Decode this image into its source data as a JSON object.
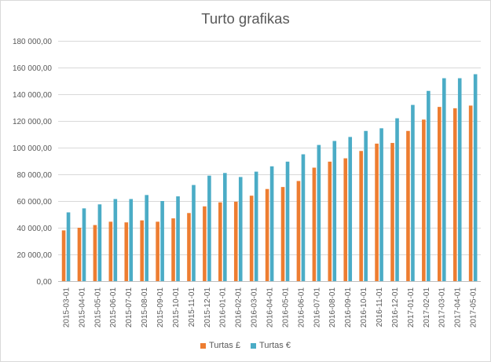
{
  "chart_data": {
    "type": "bar",
    "title": "Turto grafikas",
    "categories": [
      "2015-03-01",
      "2015-04-01",
      "2015-05-01",
      "2015-06-01",
      "2015-07-01",
      "2015-08-01",
      "2015-09-01",
      "2015-10-01",
      "2015-11-01",
      "2015-12-01",
      "2016-01-01",
      "2016-02-01",
      "2016-03-01",
      "2016-04-01",
      "2016-05-01",
      "2016-06-01",
      "2016-07-01",
      "2016-08-01",
      "2016-09-01",
      "2016-10-01",
      "2016-11-01",
      "2016-12-01",
      "2017-01-01",
      "2017-02-01",
      "2017-03-01",
      "2017-04-01",
      "2017-05-01"
    ],
    "series": [
      {
        "name": "Turtas £",
        "color": "#ED7D31",
        "values": [
          38000,
          40000,
          42000,
          44500,
          44000,
          45500,
          44500,
          47000,
          51000,
          56000,
          59000,
          59500,
          64000,
          69000,
          70500,
          75000,
          85000,
          89500,
          92000,
          97500,
          103000,
          103500,
          112500,
          121000,
          130500,
          129500,
          131500
        ]
      },
      {
        "name": "Turtas €",
        "color": "#4BACC6",
        "values": [
          51500,
          54500,
          57500,
          61500,
          61500,
          64500,
          60000,
          63500,
          72000,
          79000,
          81000,
          78000,
          82000,
          86000,
          89500,
          95000,
          102000,
          105000,
          108000,
          112500,
          114500,
          122000,
          132000,
          142500,
          152000,
          152000,
          155000
        ]
      }
    ],
    "ylim": [
      0,
      180000
    ],
    "yticks": [
      "0,00",
      "20 000,00",
      "40 000,00",
      "60 000,00",
      "80 000,00",
      "100 000,00",
      "120 000,00",
      "140 000,00",
      "160 000,00",
      "180 000,00"
    ],
    "grid": true,
    "legend_position": "bottom"
  }
}
